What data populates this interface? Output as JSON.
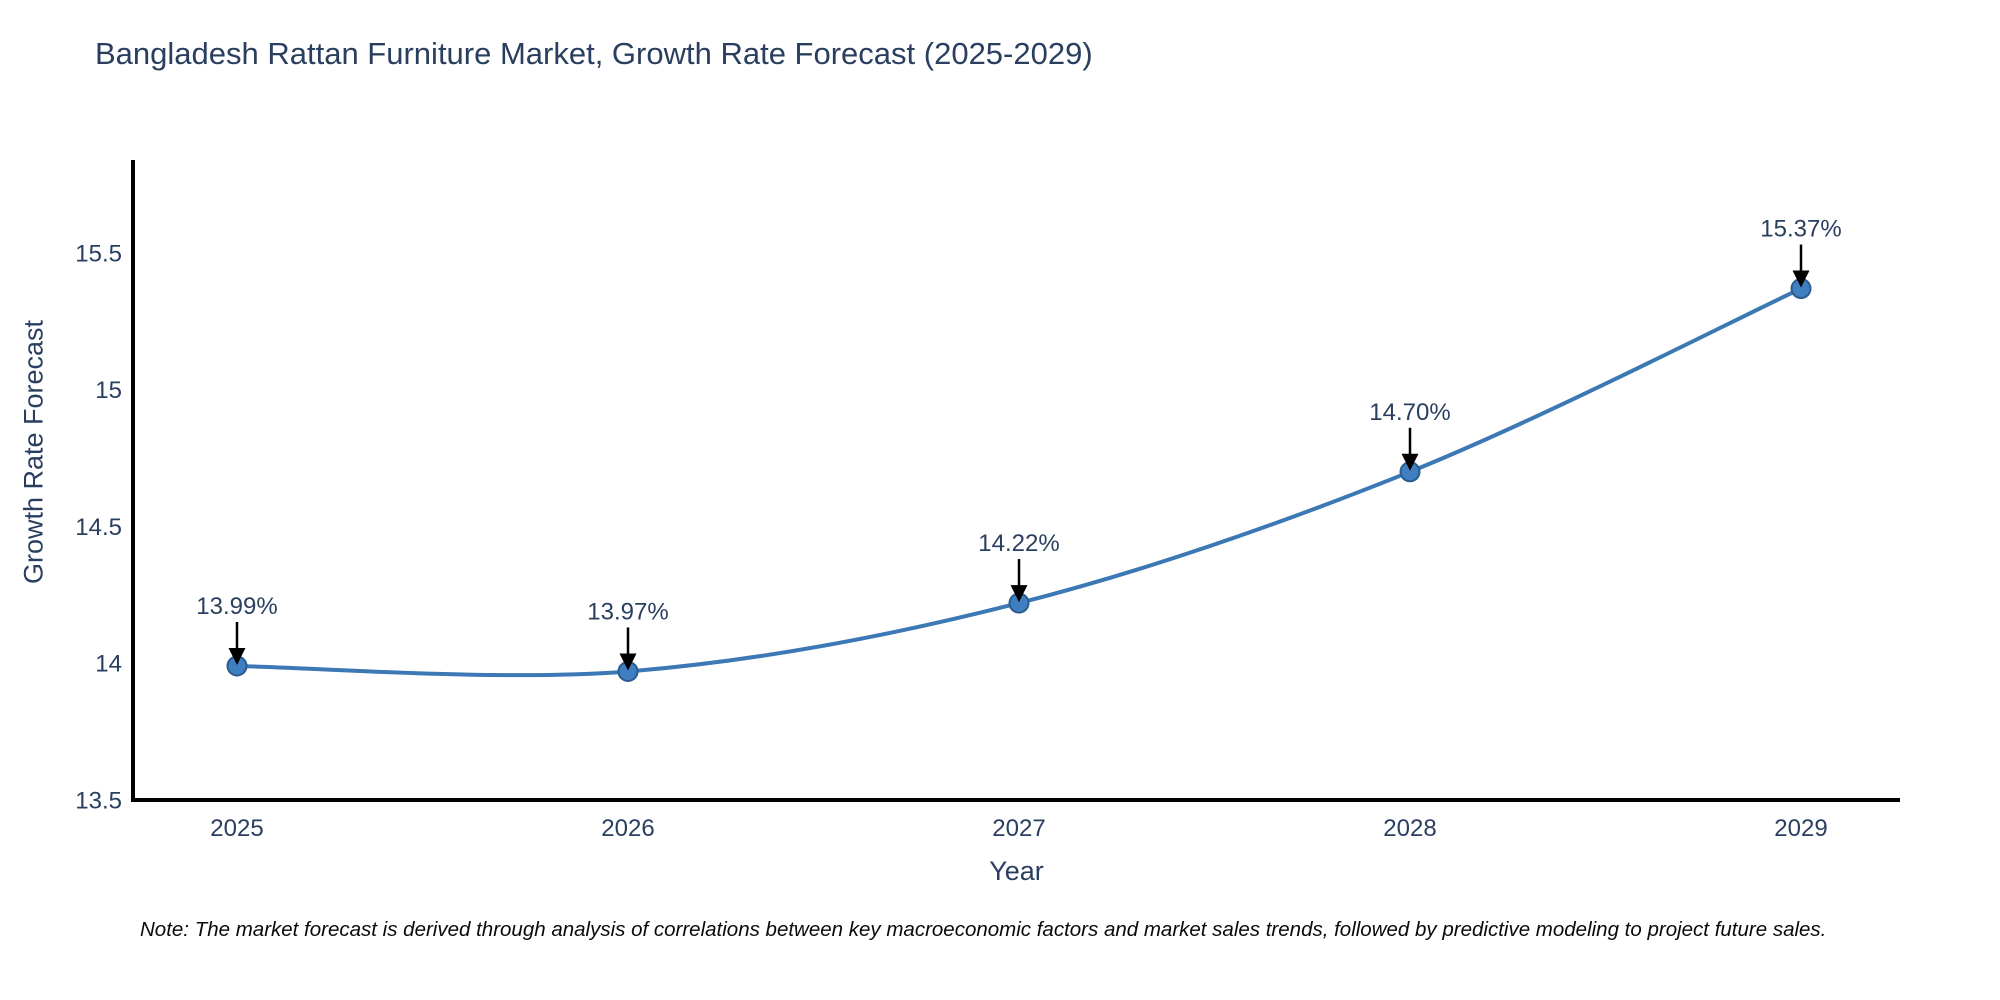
{
  "figure": {
    "title": "Bangladesh Rattan Furniture Market, Growth Rate Forecast (2025-2029)",
    "note": "Note: The market forecast is derived through analysis of correlations between key macroeconomic factors and market sales trends, followed by predictive modeling to project future sales."
  },
  "chart_data": {
    "type": "line",
    "title": "Bangladesh Rattan Furniture Market, Growth Rate Forecast (2025-2029)",
    "categories": [
      "2025",
      "2026",
      "2027",
      "2028",
      "2029"
    ],
    "series": [
      {
        "name": "Growth Rate Forecast",
        "values": [
          13.99,
          13.97,
          14.22,
          14.7,
          15.37
        ]
      }
    ],
    "point_labels": [
      "13.99%",
      "13.97%",
      "14.22%",
      "14.70%",
      "15.37%"
    ],
    "xlabel": "Year",
    "ylabel": "Growth Rate Forecast",
    "ylim": [
      13.5,
      15.84
    ],
    "yticks": [
      13.5,
      14,
      14.5,
      15,
      15.5
    ],
    "ytick_labels": [
      "13.5",
      "14",
      "14.5",
      "15",
      "15.5"
    ],
    "grid": false,
    "legend_position": "none",
    "line_shape": "spline",
    "colors": {
      "line": "#3c78b4",
      "marker_fill": "#3f7fc1",
      "marker_edge": "#2b5c8f",
      "axis": "#000000",
      "tick_text": "#2a3f5f",
      "annotation_text": "#2a3f5f",
      "arrow": "#000000",
      "background": "#ffffff"
    }
  }
}
